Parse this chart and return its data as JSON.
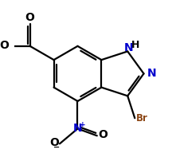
{
  "bg_color": "#ffffff",
  "bond_color": "#000000",
  "n_color": "#0000cd",
  "br_color": "#8b4513",
  "lw": 1.6,
  "figsize": [
    2.16,
    1.97
  ],
  "dpi": 100,
  "xlim": [
    0,
    216
  ],
  "ylim": [
    0,
    197
  ]
}
